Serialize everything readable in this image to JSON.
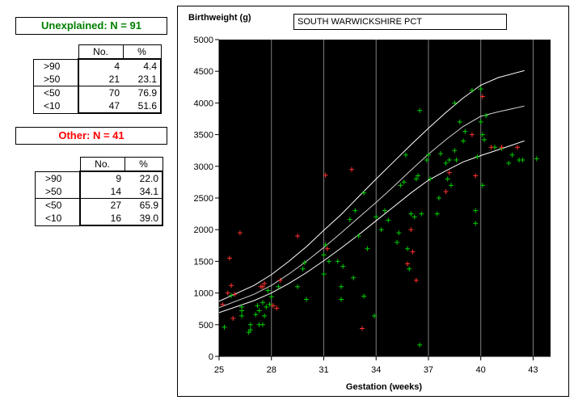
{
  "unexplained": {
    "title": "Unexplained: N = 91",
    "title_color": "#008000",
    "headers": [
      "No.",
      "%"
    ],
    "rows": [
      {
        "label": ">90",
        "no": "4",
        "pct": "4.4"
      },
      {
        "label": ">50",
        "no": "21",
        "pct": "23.1"
      },
      {
        "label": "<50",
        "no": "70",
        "pct": "76.9"
      },
      {
        "label": "<10",
        "no": "47",
        "pct": "51.6"
      }
    ]
  },
  "other": {
    "title": "Other: N = 41",
    "title_color": "#ff0000",
    "headers": [
      "No.",
      "%"
    ],
    "rows": [
      {
        "label": ">90",
        "no": "9",
        "pct": "22.0"
      },
      {
        "label": ">50",
        "no": "14",
        "pct": "34.1"
      },
      {
        "label": "<50",
        "no": "27",
        "pct": "65.9"
      },
      {
        "label": "<10",
        "no": "16",
        "pct": "39.0"
      }
    ]
  },
  "chart_data": {
    "type": "scatter",
    "title": "SOUTH WARWICKSHIRE PCT",
    "ylabel": "Birthweight (g)",
    "xlabel": "Gestation (weeks)",
    "xlim": [
      25,
      44
    ],
    "ylim": [
      0,
      5000
    ],
    "xticks": [
      "25",
      "28",
      "31",
      "34",
      "37",
      "40",
      "43"
    ],
    "yticks": [
      "0",
      "500",
      "1000",
      "1500",
      "2000",
      "2500",
      "3000",
      "3500",
      "4000",
      "4500",
      "5000"
    ],
    "background": "#000000",
    "grid": "vertical",
    "series": [
      {
        "color": "#00cc00",
        "points": [
          [
            25.3,
            460
          ],
          [
            25.7,
            960
          ],
          [
            26.3,
            780
          ],
          [
            26.3,
            640
          ],
          [
            26.3,
            720
          ],
          [
            26.7,
            380
          ],
          [
            26.8,
            420
          ],
          [
            26.8,
            500
          ],
          [
            27.1,
            660
          ],
          [
            27.2,
            800
          ],
          [
            27.3,
            500
          ],
          [
            27.3,
            720
          ],
          [
            27.5,
            500
          ],
          [
            27.5,
            850
          ],
          [
            27.6,
            640
          ],
          [
            27.7,
            780
          ],
          [
            27.8,
            1040
          ],
          [
            27.9,
            820
          ],
          [
            28.0,
            940
          ],
          [
            28.4,
            1100
          ],
          [
            29.5,
            1100
          ],
          [
            29.8,
            1380
          ],
          [
            29.9,
            1480
          ],
          [
            30.0,
            900
          ],
          [
            31.0,
            1300
          ],
          [
            31.0,
            1600
          ],
          [
            31.1,
            1760
          ],
          [
            31.3,
            1500
          ],
          [
            31.8,
            1500
          ],
          [
            32.0,
            900
          ],
          [
            32.0,
            1100
          ],
          [
            32.1,
            1420
          ],
          [
            32.5,
            2160
          ],
          [
            32.7,
            1240
          ],
          [
            32.8,
            2300
          ],
          [
            33.0,
            1900
          ],
          [
            33.3,
            950
          ],
          [
            33.3,
            2580
          ],
          [
            33.5,
            1700
          ],
          [
            33.9,
            640
          ],
          [
            34.0,
            2200
          ],
          [
            34.3,
            2000
          ],
          [
            34.5,
            2300
          ],
          [
            34.7,
            2150
          ],
          [
            35.2,
            1800
          ],
          [
            35.3,
            1950
          ],
          [
            35.4,
            2700
          ],
          [
            35.6,
            2750
          ],
          [
            35.7,
            3180
          ],
          [
            35.8,
            1700
          ],
          [
            35.9,
            1380
          ],
          [
            36.0,
            2250
          ],
          [
            36.2,
            2200
          ],
          [
            36.3,
            2800
          ],
          [
            36.4,
            2850
          ],
          [
            36.5,
            180
          ],
          [
            36.5,
            3880
          ],
          [
            36.6,
            2250
          ],
          [
            36.9,
            3100
          ],
          [
            37.0,
            3180
          ],
          [
            37.1,
            2800
          ],
          [
            37.5,
            2250
          ],
          [
            37.6,
            2500
          ],
          [
            37.7,
            3200
          ],
          [
            38.0,
            3050
          ],
          [
            38.1,
            2800
          ],
          [
            38.2,
            3100
          ],
          [
            38.3,
            2700
          ],
          [
            38.5,
            4000
          ],
          [
            38.5,
            3250
          ],
          [
            38.6,
            3100
          ],
          [
            38.8,
            3700
          ],
          [
            39.0,
            3400
          ],
          [
            39.1,
            3550
          ],
          [
            39.5,
            4200
          ],
          [
            39.7,
            2100
          ],
          [
            39.7,
            2300
          ],
          [
            39.8,
            3150
          ],
          [
            40.0,
            3700
          ],
          [
            40.0,
            4220
          ],
          [
            40.1,
            3500
          ],
          [
            40.1,
            2700
          ],
          [
            40.2,
            3420
          ],
          [
            40.3,
            3800
          ],
          [
            40.8,
            3300
          ],
          [
            41.2,
            3280
          ],
          [
            41.6,
            3050
          ],
          [
            41.8,
            3180
          ],
          [
            42.2,
            3100
          ],
          [
            42.4,
            3100
          ],
          [
            43.2,
            3120
          ]
        ]
      },
      {
        "color": "#ff3030",
        "points": [
          [
            25.2,
            820
          ],
          [
            25.5,
            1000
          ],
          [
            25.6,
            1550
          ],
          [
            25.7,
            1120
          ],
          [
            25.8,
            600
          ],
          [
            25.9,
            980
          ],
          [
            26.2,
            1950
          ],
          [
            27.4,
            1100
          ],
          [
            27.5,
            1100
          ],
          [
            27.6,
            1150
          ],
          [
            28.1,
            800
          ],
          [
            28.3,
            760
          ],
          [
            28.5,
            1200
          ],
          [
            29.5,
            1900
          ],
          [
            31.1,
            2860
          ],
          [
            31.2,
            1700
          ],
          [
            32.6,
            2950
          ],
          [
            33.2,
            440
          ],
          [
            35.8,
            1460
          ],
          [
            36.0,
            2000
          ],
          [
            36.1,
            1650
          ],
          [
            36.3,
            1200
          ],
          [
            38.0,
            2600
          ],
          [
            38.2,
            2900
          ],
          [
            39.5,
            3500
          ],
          [
            39.7,
            2850
          ],
          [
            40.1,
            4100
          ],
          [
            40.6,
            3300
          ],
          [
            41.2,
            3300
          ],
          [
            42.1,
            3300
          ]
        ]
      }
    ],
    "curves": [
      {
        "color": "#ffffff",
        "points": [
          [
            25,
            870
          ],
          [
            27,
            1120
          ],
          [
            28,
            1290
          ],
          [
            29,
            1500
          ],
          [
            30,
            1730
          ],
          [
            31,
            1990
          ],
          [
            32,
            2240
          ],
          [
            33,
            2520
          ],
          [
            34,
            2800
          ],
          [
            35,
            3070
          ],
          [
            36,
            3340
          ],
          [
            37,
            3600
          ],
          [
            38,
            3850
          ],
          [
            39,
            4080
          ],
          [
            40,
            4280
          ],
          [
            41,
            4400
          ],
          [
            42.5,
            4510
          ]
        ]
      },
      {
        "color": "#d0d0d0",
        "points": [
          [
            25,
            770
          ],
          [
            27,
            980
          ],
          [
            28,
            1120
          ],
          [
            29,
            1300
          ],
          [
            30,
            1500
          ],
          [
            31,
            1720
          ],
          [
            32,
            1950
          ],
          [
            33,
            2190
          ],
          [
            34,
            2430
          ],
          [
            35,
            2680
          ],
          [
            36,
            2940
          ],
          [
            37,
            3190
          ],
          [
            38,
            3420
          ],
          [
            39,
            3630
          ],
          [
            40,
            3790
          ],
          [
            41,
            3860
          ],
          [
            42.5,
            3950
          ]
        ]
      },
      {
        "color": "#ffffff",
        "points": [
          [
            25,
            690
          ],
          [
            27,
            880
          ],
          [
            28,
            1000
          ],
          [
            29,
            1150
          ],
          [
            30,
            1320
          ],
          [
            31,
            1510
          ],
          [
            32,
            1710
          ],
          [
            33,
            1920
          ],
          [
            34,
            2140
          ],
          [
            35,
            2360
          ],
          [
            36,
            2580
          ],
          [
            37,
            2780
          ],
          [
            38,
            2930
          ],
          [
            39,
            3070
          ],
          [
            40,
            3170
          ],
          [
            41,
            3260
          ],
          [
            42.5,
            3400
          ]
        ]
      }
    ]
  }
}
